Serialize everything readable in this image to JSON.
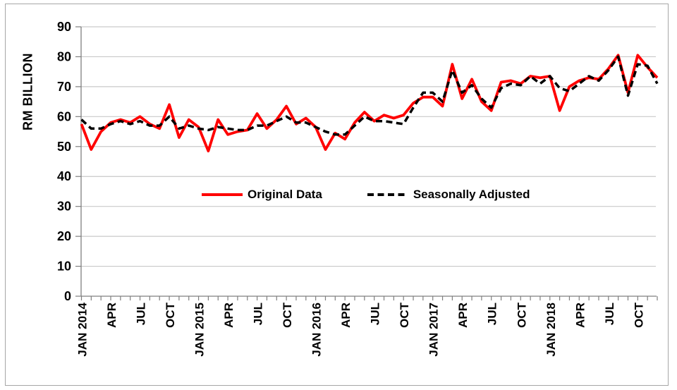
{
  "figure": {
    "background": "#FFFFFF",
    "border_color": "#A6A6A6",
    "gridline_color": "#C9C9C9",
    "axis_color": "#7F7F7F",
    "text_color": "#000000"
  },
  "chart_data": {
    "type": "line",
    "title": "",
    "xlabel": "",
    "ylabel": "RM BILLION",
    "ylim": [
      0,
      90
    ],
    "y_ticks": [
      0,
      10,
      20,
      30,
      40,
      50,
      60,
      70,
      80,
      90
    ],
    "grid": "horizontal",
    "legend_position": "inside-middle",
    "x_tick_label_interval": 3,
    "x_tick_labels": [
      "JAN 2014",
      "APR",
      "JUL",
      "OCT",
      "JAN 2015",
      "APR",
      "JUL",
      "OCT",
      "JAN 2016",
      "APR",
      "JUL",
      "OCT",
      "JAN 2017",
      "APR",
      "JUL",
      "OCT",
      "JAN 2018",
      "APR",
      "JUL",
      "OCT"
    ],
    "x": [
      "JAN 2014",
      "FEB 2014",
      "MAR 2014",
      "APR 2014",
      "MAY 2014",
      "JUN 2014",
      "JUL 2014",
      "AUG 2014",
      "SEP 2014",
      "OCT 2014",
      "NOV 2014",
      "DEC 2014",
      "JAN 2015",
      "FEB 2015",
      "MAR 2015",
      "APR 2015",
      "MAY 2015",
      "JUN 2015",
      "JUL 2015",
      "AUG 2015",
      "SEP 2015",
      "OCT 2015",
      "NOV 2015",
      "DEC 2015",
      "JAN 2016",
      "FEB 2016",
      "MAR 2016",
      "APR 2016",
      "MAY 2016",
      "JUN 2016",
      "JUL 2016",
      "AUG 2016",
      "SEP 2016",
      "OCT 2016",
      "NOV 2016",
      "DEC 2016",
      "JAN 2017",
      "FEB 2017",
      "MAR 2017",
      "APR 2017",
      "MAY 2017",
      "JUN 2017",
      "JUL 2017",
      "AUG 2017",
      "SEP 2017",
      "OCT 2017",
      "NOV 2017",
      "DEC 2017",
      "JAN 2018",
      "FEB 2018",
      "MAR 2018",
      "APR 2018",
      "MAY 2018",
      "JUN 2018",
      "JUL 2018",
      "AUG 2018",
      "SEP 2018",
      "OCT 2018",
      "NOV 2018",
      "DEC 2018"
    ],
    "series": [
      {
        "name": "Original Data",
        "color": "#FF0000",
        "style": "solid",
        "values": [
          57.5,
          49,
          55,
          58,
          59,
          58,
          60,
          57.5,
          56,
          64,
          53,
          59,
          56.5,
          48.5,
          59,
          54,
          55,
          55.5,
          61,
          56,
          59,
          63.5,
          57.5,
          59.5,
          56.5,
          49,
          54.5,
          52.5,
          58,
          61.5,
          58.5,
          60.5,
          59.5,
          60.5,
          64.5,
          66.5,
          66.5,
          63.5,
          77.5,
          66,
          72.5,
          65,
          62,
          71.5,
          72,
          71,
          73.5,
          73,
          73.5,
          62,
          70,
          72,
          73,
          72.5,
          76,
          80.5,
          68,
          80.5,
          76.5,
          73
        ]
      },
      {
        "name": "Seasonally Adjusted",
        "color": "#000000",
        "style": "dashed",
        "values": [
          59,
          56,
          56,
          57.5,
          58.5,
          57.5,
          58.5,
          57,
          57,
          60,
          56,
          57,
          56,
          55.5,
          56.5,
          56,
          55.5,
          55.5,
          57,
          57,
          58.5,
          60,
          58,
          58,
          56.5,
          55,
          54,
          54,
          57,
          60,
          58.5,
          58.5,
          58,
          57.5,
          63,
          68,
          68,
          65,
          75.5,
          68,
          70.5,
          66,
          63,
          69.5,
          71,
          70.5,
          73.5,
          71,
          73.5,
          69.5,
          68.5,
          71,
          73.5,
          72,
          75.5,
          80,
          67,
          77.5,
          77,
          71
        ]
      }
    ]
  }
}
